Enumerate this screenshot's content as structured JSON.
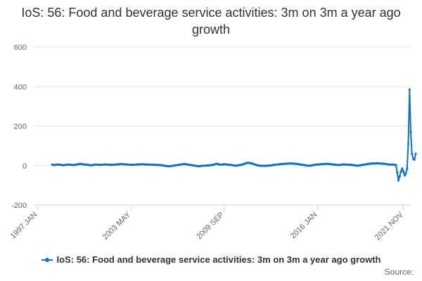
{
  "header": {
    "title": "IoS: 56: Food and beverage service activities: 3m on 3m a year ago growth"
  },
  "legend": {
    "label": "IoS: 56: Food and beverage service activities: 3m on 3m a year ago growth"
  },
  "footer": {
    "source_label": "Source:"
  },
  "colors": {
    "series": "#0f73bb",
    "grid": "#e6e6e6",
    "axis": "#ccd6eb"
  },
  "chart_data": {
    "type": "line",
    "title": "IoS: 56: Food and beverage service activities: 3m on 3m a year ago growth",
    "xlabel": "",
    "ylabel": "",
    "ylim": [
      -200,
      600
    ],
    "yticks": [
      -200,
      0,
      200,
      400,
      600
    ],
    "grid": true,
    "legend_position": "bottom-center",
    "x_start": "1998 JAN",
    "x_end": "2022 FEB",
    "xticks": [
      {
        "label": "1997 JAN",
        "index": -12
      },
      {
        "label": "2003 MAY",
        "index": 64
      },
      {
        "label": "2009 SEP",
        "index": 140
      },
      {
        "label": "2016 JAN",
        "index": 216
      },
      {
        "label": "2021 NOV",
        "index": 286
      }
    ],
    "series": [
      {
        "name": "IoS: 56: Food and beverage service activities: 3m on 3m a year ago growth",
        "values": [
          5,
          4,
          3,
          4,
          5,
          6,
          5,
          4,
          3,
          2,
          3,
          4,
          4,
          5,
          5,
          4,
          4,
          3,
          3,
          4,
          6,
          7,
          8,
          9,
          8,
          7,
          6,
          5,
          5,
          4,
          3,
          2,
          2,
          3,
          4,
          5,
          5,
          5,
          4,
          4,
          4,
          5,
          5,
          6,
          6,
          5,
          5,
          4,
          4,
          4,
          5,
          5,
          6,
          6,
          7,
          7,
          8,
          8,
          7,
          7,
          6,
          6,
          5,
          5,
          4,
          4,
          4,
          5,
          5,
          6,
          6,
          6,
          7,
          7,
          7,
          6,
          6,
          6,
          5,
          5,
          5,
          5,
          5,
          4,
          4,
          4,
          3,
          3,
          3,
          2,
          1,
          0,
          -1,
          -2,
          -3,
          -3,
          -3,
          -2,
          -1,
          0,
          1,
          2,
          3,
          4,
          5,
          6,
          7,
          8,
          8,
          7,
          6,
          5,
          4,
          3,
          2,
          1,
          0,
          -1,
          -2,
          -3,
          -3,
          -2,
          -1,
          0,
          0,
          0,
          1,
          1,
          2,
          2,
          3,
          4,
          6,
          8,
          9,
          8,
          6,
          5,
          5,
          6,
          7,
          7,
          6,
          5,
          4,
          4,
          3,
          2,
          1,
          0,
          0,
          1,
          2,
          3,
          4,
          6,
          8,
          10,
          12,
          14,
          14,
          13,
          12,
          10,
          8,
          6,
          4,
          2,
          1,
          0,
          -1,
          -1,
          -1,
          -1,
          -1,
          0,
          0,
          1,
          1,
          2,
          3,
          4,
          5,
          5,
          6,
          7,
          8,
          8,
          9,
          9,
          9,
          10,
          10,
          11,
          11,
          10,
          10,
          10,
          9,
          9,
          8,
          7,
          6,
          5,
          4,
          3,
          2,
          1,
          0,
          0,
          0,
          1,
          2,
          3,
          4,
          5,
          6,
          6,
          7,
          7,
          8,
          8,
          8,
          9,
          9,
          8,
          8,
          7,
          7,
          6,
          5,
          4,
          4,
          3,
          3,
          4,
          5,
          6,
          6,
          5,
          5,
          5,
          4,
          4,
          4,
          3,
          2,
          1,
          0,
          0,
          1,
          2,
          3,
          4,
          5,
          6,
          7,
          8,
          9,
          10,
          10,
          11,
          11,
          11,
          12,
          12,
          11,
          11,
          10,
          10,
          9,
          9,
          8,
          7,
          6,
          5,
          5,
          6,
          5,
          4,
          3,
          -35,
          -75,
          -55,
          -30,
          -15,
          -30,
          -50,
          -40,
          -15,
          110,
          385,
          170,
          60,
          35,
          30,
          60
        ]
      }
    ]
  }
}
